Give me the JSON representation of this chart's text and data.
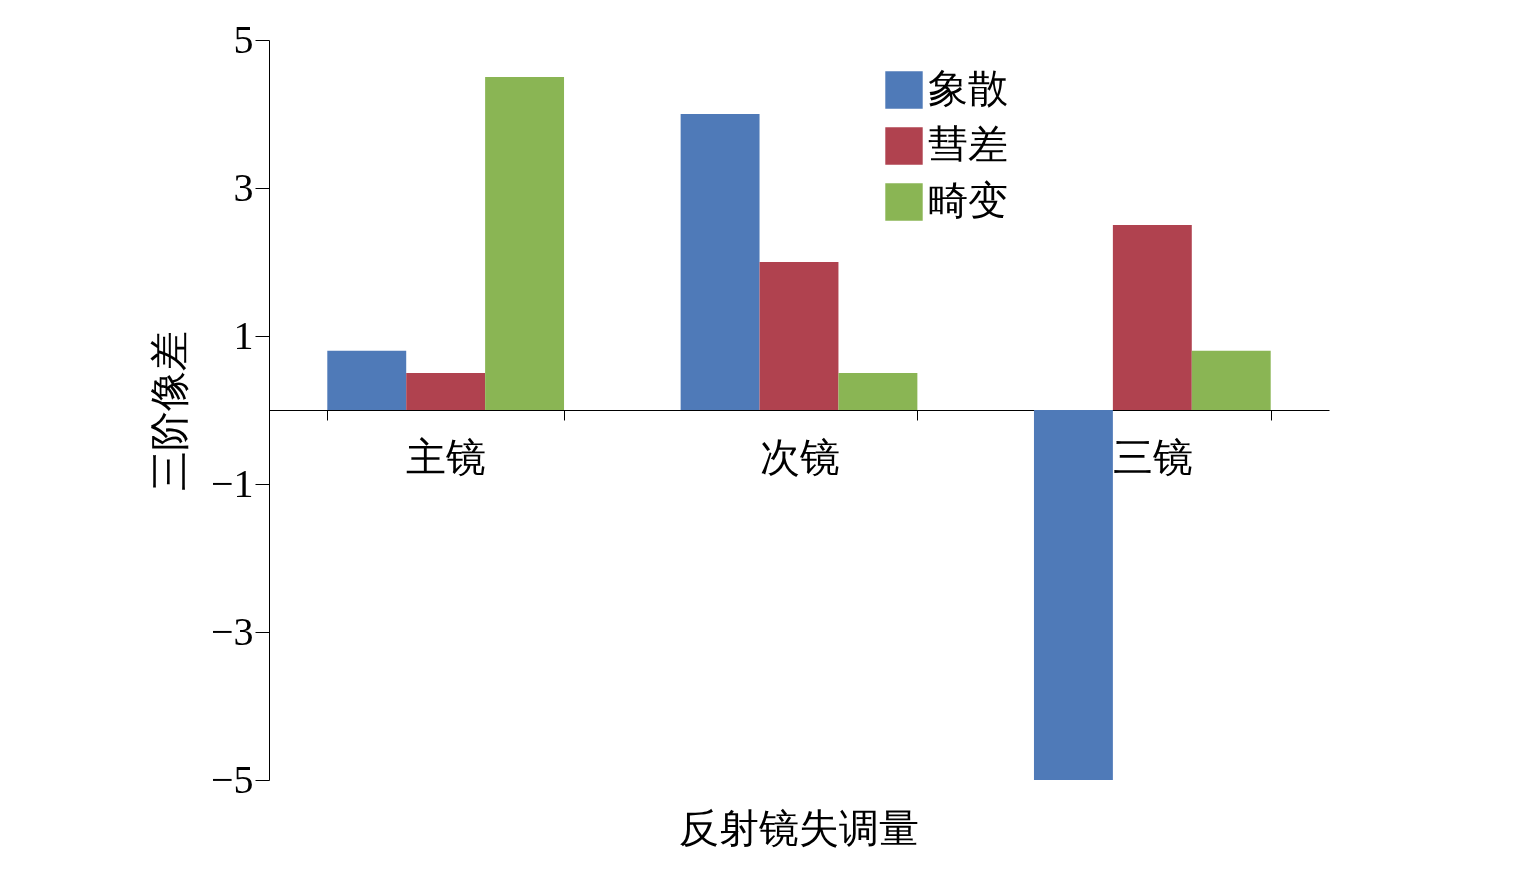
{
  "chart_data": {
    "type": "bar",
    "xlabel": "反射镜失调量",
    "ylabel": "三阶像差",
    "categories": [
      "主镜",
      "次镜",
      "三镜"
    ],
    "series": [
      {
        "name": "象散",
        "color": "#4f7ab8",
        "values": [
          0.8,
          4.0,
          -5.0
        ]
      },
      {
        "name": "彗差",
        "color": "#b0424f",
        "values": [
          0.5,
          2.0,
          2.5
        ]
      },
      {
        "name": "畸变",
        "color": "#8ab554",
        "values": [
          4.5,
          0.5,
          0.8
        ]
      }
    ],
    "ylim": [
      -5,
      5
    ],
    "yticks": [
      5,
      3,
      1,
      {
        "value": -1,
        "label": "−1"
      },
      {
        "value": -3,
        "label": "−3"
      },
      {
        "value": -5,
        "label": "−5"
      }
    ],
    "grid": false,
    "legend": "top right"
  }
}
